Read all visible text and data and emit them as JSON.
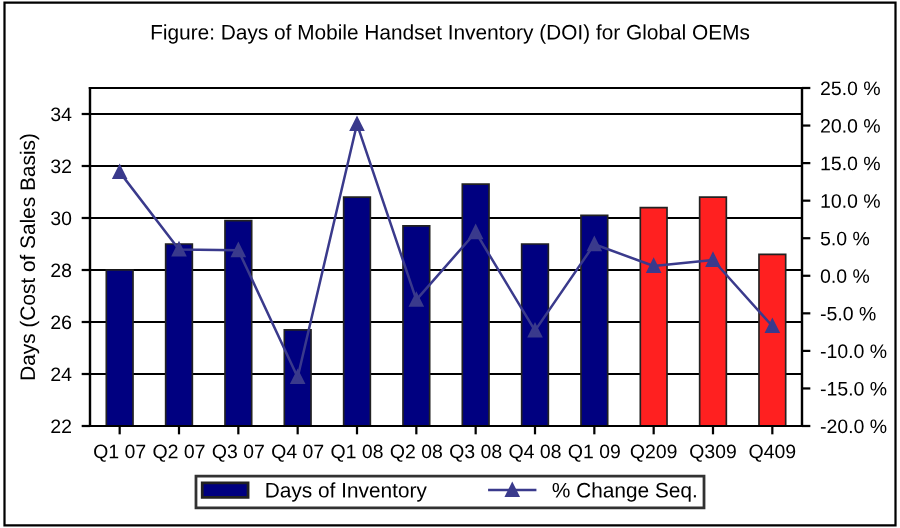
{
  "chart_data": {
    "type": "bar",
    "title": "Figure: Days of Mobile Handset Inventory (DOI) for Global OEMs",
    "ylabel": "Days (Cost of Sales Basis)",
    "categories": [
      "Q1 07",
      "Q2 07",
      "Q3 07",
      "Q4 07",
      "Q1 08",
      "Q2 08",
      "Q3 08",
      "Q4 08",
      "Q1 09",
      "Q209",
      "Q309",
      "Q409"
    ],
    "series": [
      {
        "name": "Days of Inventory",
        "color": "#000080",
        "colors": [
          "#000080",
          "#000080",
          "#000080",
          "#000080",
          "#000080",
          "#000080",
          "#000080",
          "#000080",
          "#000080",
          "#ff2020",
          "#ff2020",
          "#ff2020"
        ],
        "values": [
          28.0,
          29.0,
          29.9,
          25.7,
          30.8,
          29.7,
          31.3,
          29.0,
          30.1,
          30.4,
          30.8,
          28.6
        ]
      },
      {
        "name": "% Change Seq.",
        "type": "line",
        "axis": "y2",
        "color": "#3a3a8c",
        "marker": "triangle",
        "values": [
          13.8,
          3.5,
          3.4,
          -13.5,
          20.2,
          -3.2,
          5.8,
          -7.3,
          4.2,
          1.3,
          2.1,
          -6.7
        ]
      }
    ],
    "ylim": [
      22,
      35
    ],
    "yticks": [
      22,
      24,
      26,
      28,
      30,
      32,
      34
    ],
    "y2lim": [
      -20,
      25
    ],
    "y2ticks": [
      {
        "value": -20,
        "label": "-20.0 %"
      },
      {
        "value": -15,
        "label": "-15.0 %"
      },
      {
        "value": -10,
        "label": "-10.0 %"
      },
      {
        "value": -5,
        "label": "-5.0 %"
      },
      {
        "value": 0,
        "label": "0.0 %"
      },
      {
        "value": 5,
        "label": "5.0 %"
      },
      {
        "value": 10,
        "label": "10.0 %"
      },
      {
        "value": 15,
        "label": "15.0 %"
      },
      {
        "value": 20,
        "label": "20.0 %"
      },
      {
        "value": 25,
        "label": "25.0 %"
      }
    ],
    "grid": "y",
    "legend": "bottom"
  }
}
